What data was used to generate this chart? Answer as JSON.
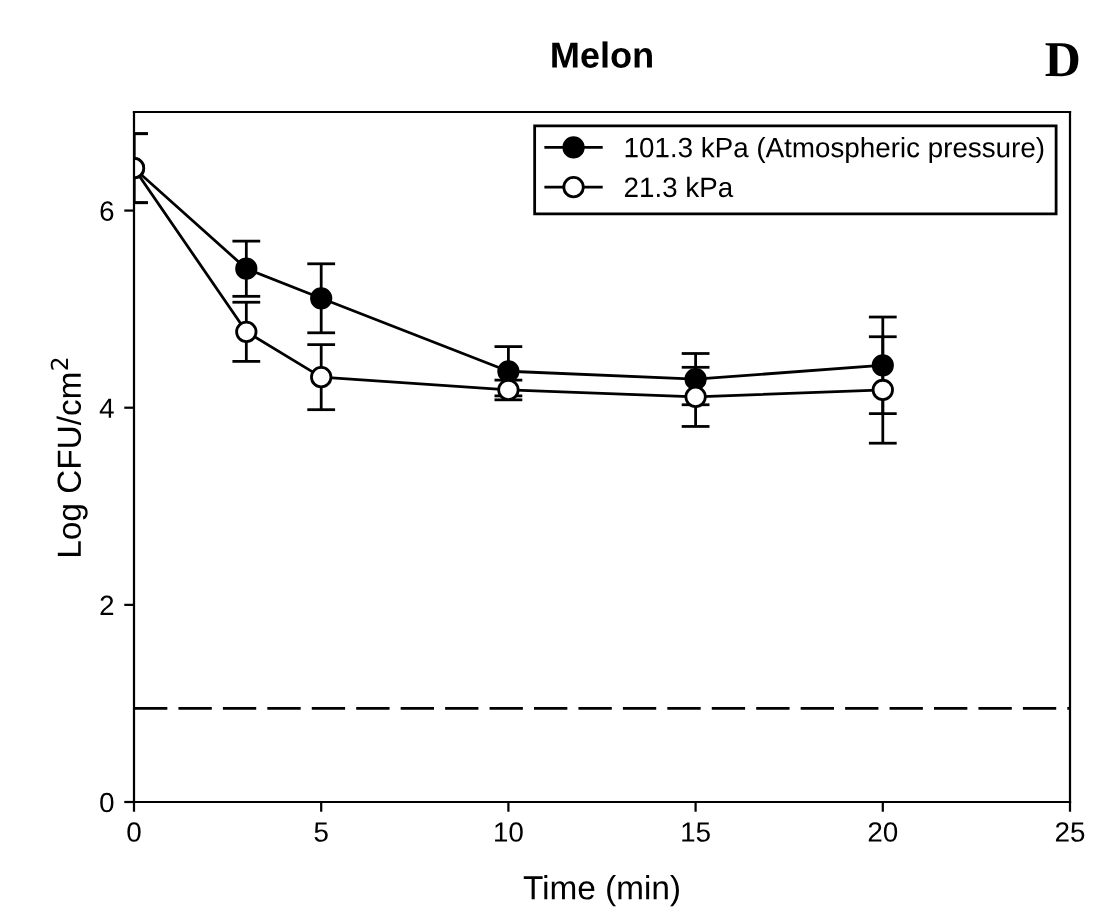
{
  "chart_data": {
    "type": "line",
    "title": "Melon",
    "xlabel": "Time (min)",
    "ylabel": "Log CFU/cm$^{2}$",
    "annotations": [
      "D"
    ],
    "x": [
      0,
      3,
      5,
      10,
      15,
      20
    ],
    "xlim": [
      0,
      25
    ],
    "xticks": [
      0,
      5,
      10,
      15,
      20,
      25
    ],
    "ylim": [
      0,
      7
    ],
    "yticks": [
      0,
      2,
      4,
      6
    ],
    "series": [
      {
        "name": "101.3 kPa (Atmospheric pressure)",
        "color": "#000000",
        "values": [
          6.43,
          5.41,
          5.11,
          4.37,
          4.29,
          4.43
        ],
        "errors": [
          0.35,
          0.28,
          0.35,
          0.25,
          0.26,
          0.49
        ]
      },
      {
        "name": "21.3 kPa",
        "color": "#ffffff",
        "values": [
          6.43,
          4.77,
          4.31,
          4.18,
          4.11,
          4.18
        ],
        "errors": [
          0.35,
          0.3,
          0.33,
          0.1,
          0.3,
          0.54
        ]
      }
    ],
    "ref_lines": [
      {
        "axis": "y",
        "value": 0.95,
        "line_style": "dashed",
        "color": "#000000"
      }
    ],
    "marker": "circle",
    "line_style": "solid",
    "legend": "top right",
    "grid": false
  }
}
